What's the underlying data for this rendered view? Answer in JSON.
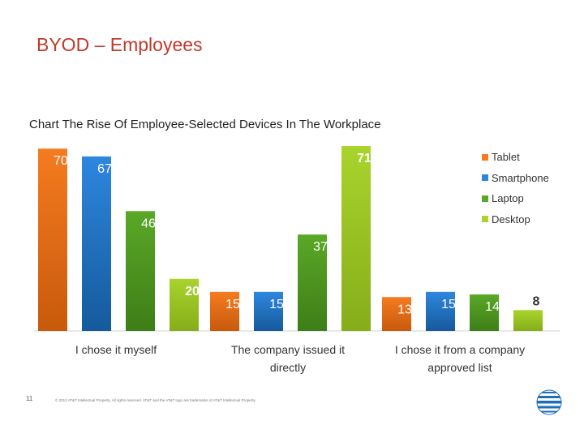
{
  "slide_title": "BYOD – Employees",
  "chart_title": "Chart The Rise Of Employee-Selected Devices In The Workplace",
  "page_number": "11",
  "footer": "© 2012 AT&T Intellectual Property. All rights reserved. AT&T and the AT&T logo are trademarks of AT&T Intellectual Property.",
  "logo": "att-globe-icon",
  "colors": {
    "tablet": "#f47b20",
    "smartphone": "#2e86de",
    "laptop": "#5aa827",
    "desktop": "#a8d42c"
  },
  "chart_data": {
    "type": "bar",
    "title": "Chart The Rise Of Employee-Selected Devices In The Workplace",
    "categories": [
      "I chose it myself",
      "The company issued it directly",
      "I chose it from a company approved list"
    ],
    "series": [
      {
        "name": "Tablet",
        "values": [
          70,
          15,
          13
        ]
      },
      {
        "name": "Smartphone",
        "values": [
          67,
          15,
          15
        ]
      },
      {
        "name": "Laptop",
        "values": [
          46,
          37,
          14
        ]
      },
      {
        "name": "Desktop",
        "values": [
          20,
          71,
          8
        ]
      }
    ],
    "ylim": [
      0,
      71
    ],
    "xlabel": "",
    "ylabel": "",
    "legend": "right"
  }
}
